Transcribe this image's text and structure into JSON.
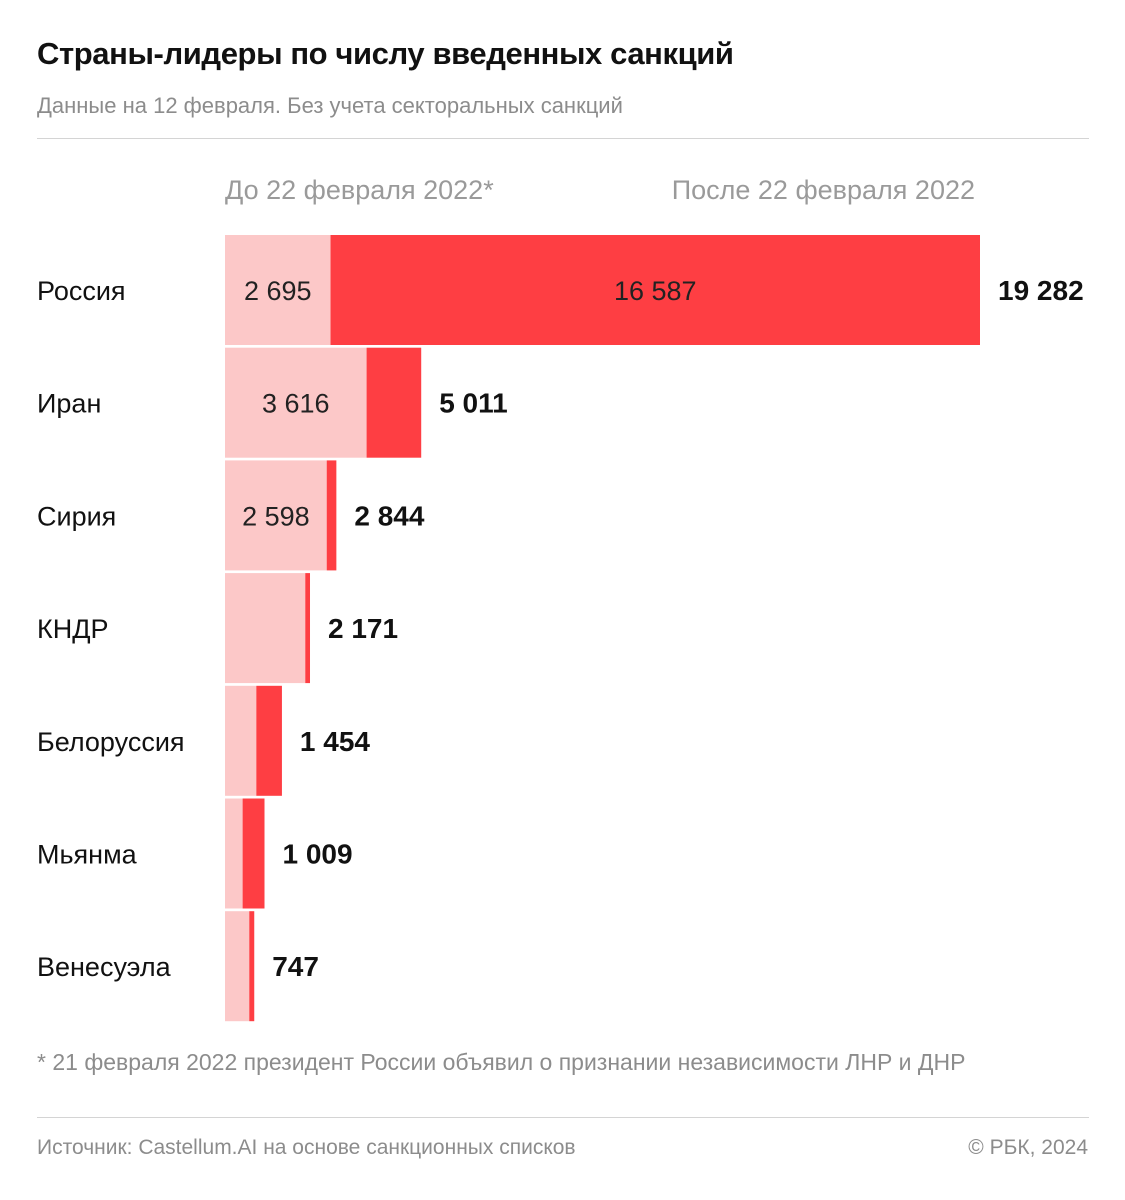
{
  "header": {
    "title": "Страны-лидеры по числу введенных санкций",
    "subtitle": "Данные на 12 февраля. Без учета секторальных санкций"
  },
  "legend": {
    "before": "До 22 февраля 2022*",
    "after": "После 22 февраля 2022"
  },
  "colors": {
    "before": "#fcc8c8",
    "after": "#fe3e43",
    "label": "#111111",
    "muted": "#8c8c8c"
  },
  "chart_data": {
    "type": "bar",
    "orientation": "horizontal",
    "stacked": true,
    "title": "Страны-лидеры по числу введенных санкций",
    "categories": [
      "Россия",
      "Иран",
      "Сирия",
      "КНДР",
      "Белоруссия",
      "Мьянма",
      "Венесуэла"
    ],
    "series": [
      {
        "name": "До 22 февраля 2022*",
        "values": [
          2695,
          3616,
          2598,
          2050,
          800,
          450,
          620
        ]
      },
      {
        "name": "После 22 февраля 2022",
        "values": [
          16587,
          1395,
          246,
          121,
          654,
          559,
          127
        ]
      }
    ],
    "segment_labels": [
      {
        "row": 0,
        "series": 0,
        "text": "2 695"
      },
      {
        "row": 0,
        "series": 1,
        "text": "16 587"
      },
      {
        "row": 1,
        "series": 0,
        "text": "3 616"
      },
      {
        "row": 2,
        "series": 0,
        "text": "2 598"
      }
    ],
    "totals": [
      19282,
      5011,
      2844,
      2171,
      1454,
      1009,
      747
    ],
    "total_labels": [
      "19 282",
      "5 011",
      "2 844",
      "2 171",
      "1 454",
      "1 009",
      "747"
    ],
    "xlim": [
      0,
      19282
    ]
  },
  "footer": {
    "footnote": "* 21 февраля 2022 президент России объявил о признании независимости ЛНР и ДНР",
    "source": "Источник: Castellum.AI на основе санкционных списков",
    "copyright": "© РБК, 2024"
  }
}
